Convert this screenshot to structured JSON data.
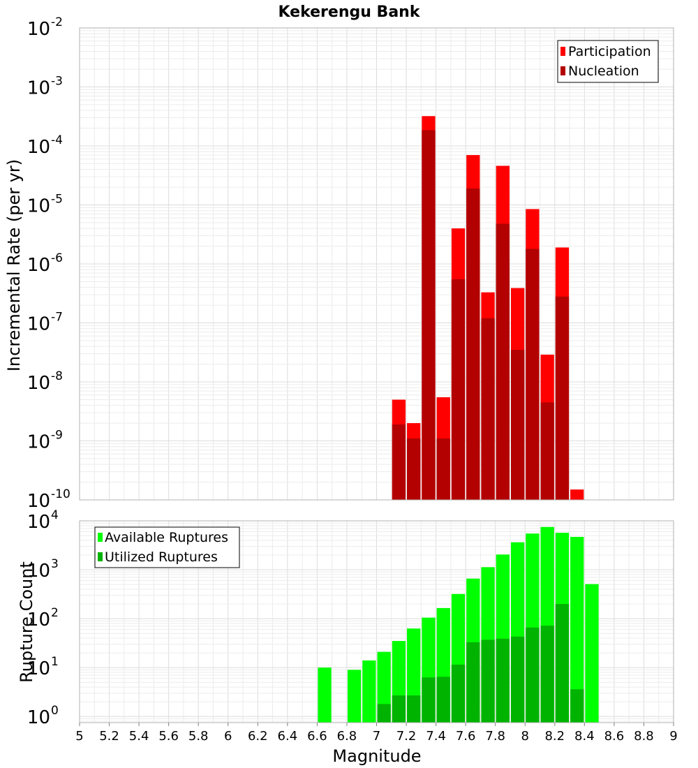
{
  "chart_data": [
    {
      "type": "bar",
      "title": "Kekerengu Bank",
      "ylabel": "Incremental Rate (per yr)",
      "xlabel": "",
      "yscale": "log",
      "ylim": [
        1e-10,
        0.01
      ],
      "xlim": [
        5,
        9
      ],
      "grid": true,
      "legend_position": "top-right",
      "yticks": [
        {
          "base": "10",
          "exp": "-2",
          "value": 0.01
        },
        {
          "base": "10",
          "exp": "-3",
          "value": 0.001
        },
        {
          "base": "10",
          "exp": "-4",
          "value": 0.0001
        },
        {
          "base": "10",
          "exp": "-5",
          "value": 1e-05
        },
        {
          "base": "10",
          "exp": "-6",
          "value": 1e-06
        },
        {
          "base": "10",
          "exp": "-7",
          "value": 1e-07
        },
        {
          "base": "10",
          "exp": "-8",
          "value": 1e-08
        },
        {
          "base": "10",
          "exp": "-9",
          "value": 1e-09
        },
        {
          "base": "10",
          "exp": "-10",
          "value": 1e-10
        }
      ],
      "x": [
        7.15,
        7.25,
        7.35,
        7.45,
        7.55,
        7.65,
        7.75,
        7.85,
        7.95,
        8.05,
        8.15,
        8.25,
        8.35
      ],
      "series": [
        {
          "name": "Participation",
          "color": "#ff0000",
          "values": [
            5e-09,
            2e-09,
            0.00032,
            5.5e-09,
            4e-06,
            7e-05,
            3.3e-07,
            4.6e-05,
            3.9e-07,
            8.5e-06,
            2.9e-08,
            1.9e-06,
            1.5e-10
          ]
        },
        {
          "name": "Nucleation",
          "color": "#b30000",
          "values": [
            1.9e-09,
            1.1e-09,
            0.000185,
            1.1e-09,
            5.5e-07,
            1.9e-05,
            1.2e-07,
            4.8e-06,
            3.5e-08,
            1.8e-06,
            4.5e-09,
            2.8e-07,
            null
          ]
        }
      ]
    },
    {
      "type": "bar",
      "title": "",
      "ylabel": "Rupture Count",
      "xlabel": "Magnitude",
      "yscale": "log",
      "ylim": [
        0.75,
        10000
      ],
      "xlim": [
        5,
        9
      ],
      "grid": true,
      "legend_position": "top-left",
      "xticks": [
        "5",
        "5.2",
        "5.4",
        "5.6",
        "5.8",
        "6",
        "6.2",
        "6.4",
        "6.6",
        "6.8",
        "7",
        "7.2",
        "7.4",
        "7.6",
        "7.8",
        "8",
        "8.2",
        "8.4",
        "8.6",
        "8.8",
        "9"
      ],
      "yticks": [
        {
          "base": "10",
          "exp": "4",
          "value": 10000
        },
        {
          "base": "10",
          "exp": "3",
          "value": 1000
        },
        {
          "base": "10",
          "exp": "2",
          "value": 100
        },
        {
          "base": "10",
          "exp": "1",
          "value": 10
        },
        {
          "base": "10",
          "exp": "0",
          "value": 1
        }
      ],
      "x": [
        6.65,
        6.75,
        6.85,
        6.95,
        7.05,
        7.15,
        7.25,
        7.35,
        7.45,
        7.55,
        7.65,
        7.75,
        7.85,
        7.95,
        8.05,
        8.15,
        8.25,
        8.35,
        8.45
      ],
      "series": [
        {
          "name": "Available Ruptures",
          "color": "#00ff00",
          "values": [
            10,
            null,
            9,
            14,
            21,
            35,
            63,
            105,
            165,
            320,
            660,
            1130,
            2050,
            3650,
            5500,
            7500,
            5700,
            4700,
            510
          ]
        },
        {
          "name": "Utilized Ruptures",
          "color": "#00b300",
          "values": [
            null,
            null,
            null,
            null,
            1.8,
            2.7,
            2.7,
            6.3,
            6.5,
            11.5,
            33,
            37,
            39,
            43,
            66,
            72,
            200,
            3.6,
            null
          ]
        }
      ]
    }
  ]
}
